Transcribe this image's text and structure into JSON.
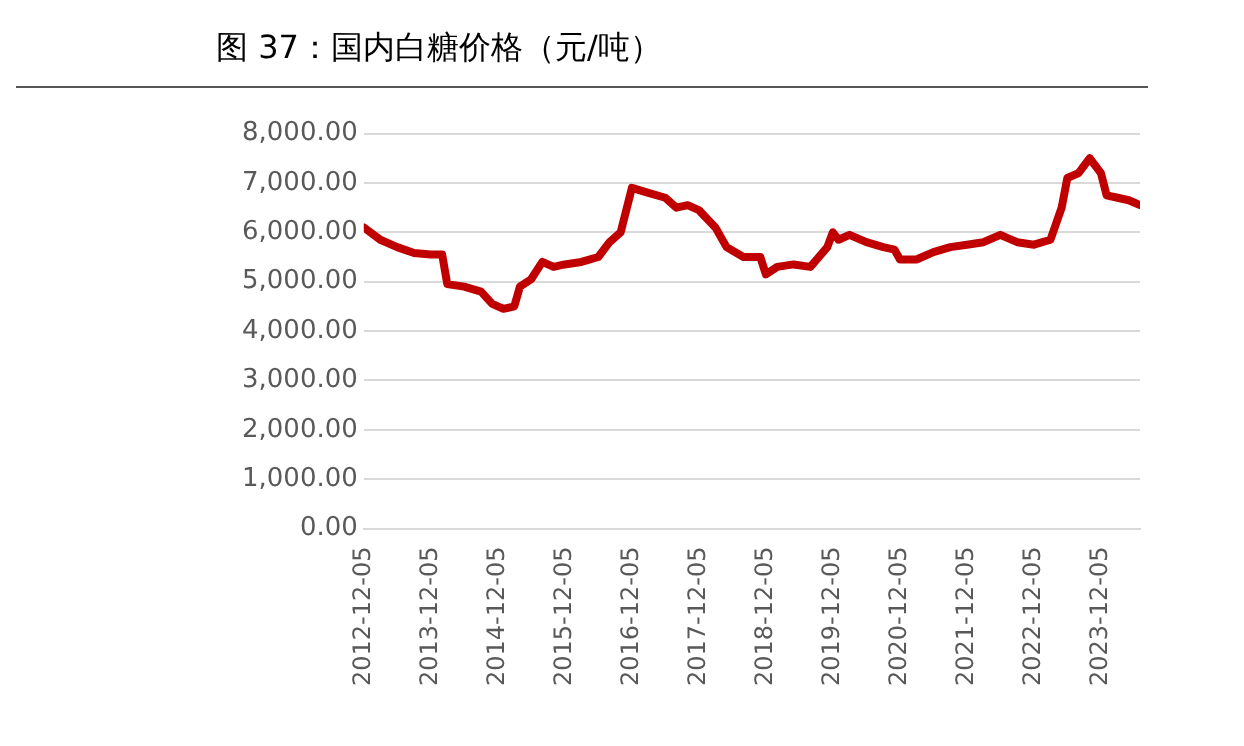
{
  "chart_data": {
    "type": "line",
    "title": "图 37：国内白糖价格（元/吨）",
    "x": [
      "2012-12-05",
      "2013-03-05",
      "2013-06-05",
      "2013-09-05",
      "2013-12-05",
      "2014-02-05",
      "2014-03-05",
      "2014-06-05",
      "2014-09-05",
      "2014-11-05",
      "2015-01-05",
      "2015-03-05",
      "2015-04-05",
      "2015-06-05",
      "2015-08-05",
      "2015-10-05",
      "2015-12-05",
      "2016-03-05",
      "2016-06-05",
      "2016-08-05",
      "2016-10-05",
      "2016-12-05",
      "2017-03-05",
      "2017-06-05",
      "2017-08-05",
      "2017-10-05",
      "2017-12-05",
      "2018-03-05",
      "2018-05-05",
      "2018-08-05",
      "2018-11-05",
      "2018-12-05",
      "2019-02-05",
      "2019-05-05",
      "2019-08-05",
      "2019-11-05",
      "2019-12-05",
      "2020-01-05",
      "2020-03-05",
      "2020-06-05",
      "2020-09-05",
      "2020-11-05",
      "2020-12-05",
      "2021-03-05",
      "2021-06-05",
      "2021-09-05",
      "2021-12-05",
      "2022-03-05",
      "2022-06-05",
      "2022-09-05",
      "2022-12-05",
      "2023-03-05",
      "2023-05-05",
      "2023-06-05",
      "2023-08-05",
      "2023-10-05",
      "2023-12-05",
      "2024-01-05",
      "2024-03-05",
      "2024-05-05",
      "2024-07-05"
    ],
    "series": [
      {
        "color": "#c00000",
        "values": [
          6100,
          5850,
          5700,
          5580,
          5550,
          5550,
          4950,
          4900,
          4800,
          4550,
          4450,
          4500,
          4900,
          5050,
          5400,
          5300,
          5350,
          5400,
          5500,
          5800,
          6000,
          6900,
          6800,
          6700,
          6500,
          6550,
          6450,
          6100,
          5700,
          5500,
          5500,
          5150,
          5300,
          5350,
          5300,
          5700,
          6000,
          5850,
          5950,
          5800,
          5700,
          5650,
          5450,
          5450,
          5600,
          5700,
          5750,
          5800,
          5950,
          5800,
          5750,
          5850,
          6500,
          7100,
          7200,
          7500,
          7200,
          6750,
          6700,
          6650,
          6550
        ]
      }
    ],
    "xlim": [
      "2012-12-05",
      "2024-07-05"
    ],
    "xticks": [
      "2012-12-05",
      "2013-12-05",
      "2014-12-05",
      "2015-12-05",
      "2016-12-05",
      "2017-12-05",
      "2018-12-05",
      "2019-12-05",
      "2020-12-05",
      "2021-12-05",
      "2022-12-05",
      "2023-12-05"
    ],
    "ylim": [
      0,
      8000
    ],
    "yticks": [
      {
        "value": 0,
        "label": "0.00"
      },
      {
        "value": 1000,
        "label": "1,000.00"
      },
      {
        "value": 2000,
        "label": "2,000.00"
      },
      {
        "value": 3000,
        "label": "3,000.00"
      },
      {
        "value": 4000,
        "label": "4,000.00"
      },
      {
        "value": 5000,
        "label": "5,000.00"
      },
      {
        "value": 6000,
        "label": "6,000.00"
      },
      {
        "value": 7000,
        "label": "7,000.00"
      },
      {
        "value": 8000,
        "label": "8,000.00"
      }
    ],
    "grid": "y",
    "legend": false,
    "marker": "none",
    "line_style": "solid"
  }
}
